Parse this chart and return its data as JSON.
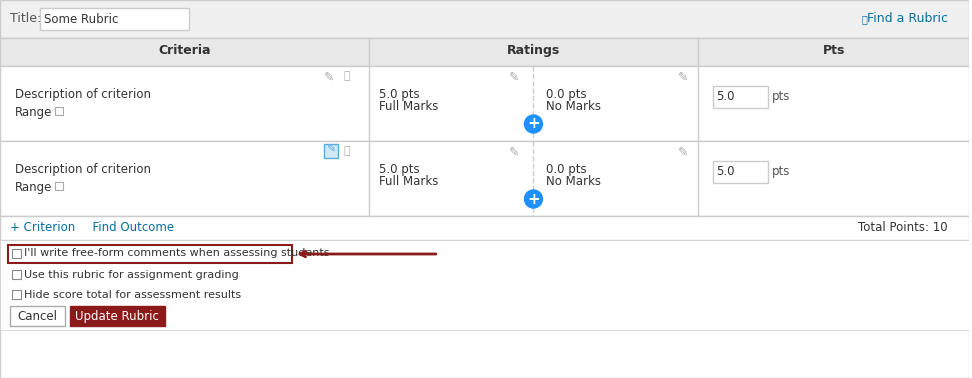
{
  "bg_color": "#f5f5f5",
  "white": "#ffffff",
  "border_color": "#cccccc",
  "header_bg": "#e8e8e8",
  "blue": "#0770A2",
  "blue_btn": "#1e90ff",
  "dark_red": "#8B1A1A",
  "red_border": "#8B1A1A",
  "gray_text": "#555555",
  "light_gray": "#f0f0f0",
  "title_bar_text": "Title:",
  "title_value": "Some Rubric",
  "find_rubric": "Find a Rubric",
  "col_criteria": "Criteria",
  "col_ratings": "Ratings",
  "col_pts": "Pts",
  "desc_text": "Description of criterion",
  "range_text": "Range",
  "full_pts": "5.0 pts",
  "full_marks": "Full Marks",
  "no_pts": "0.0 pts",
  "no_marks": "No Marks",
  "pts_value": "5.0",
  "pts_label": "pts",
  "add_criterion": "+ Criterion",
  "find_outcome": "  Find Outcome",
  "total_points": "Total Points: 10",
  "checkbox1": "I'll write free-form comments when assessing students",
  "checkbox2": "Use this rubric for assignment grading",
  "checkbox3": "Hide score total for assessment results",
  "cancel_btn": "Cancel",
  "update_btn": "Update Rubric"
}
